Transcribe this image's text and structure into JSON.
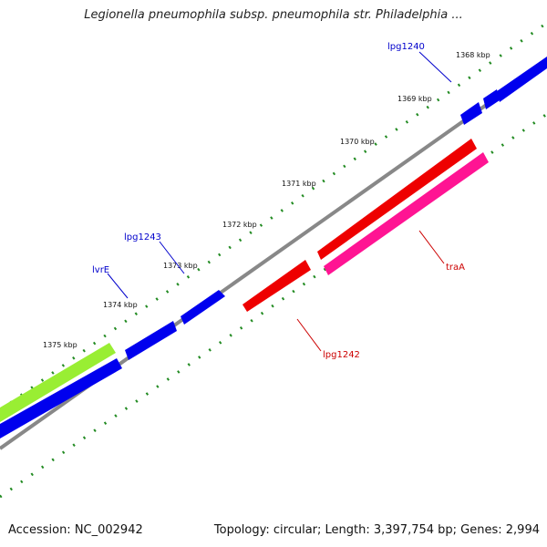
{
  "title": "Legionella pneumophila subsp. pneumophila str. Philadelphia ...",
  "footer": {
    "accession": "Accession: NC_002942",
    "summary": "Topology: circular; Length: 3,397,754 bp; Genes: 2,994"
  },
  "ticks": [
    {
      "label": "1368 kbp",
      "kbp": 1368
    },
    {
      "label": "1369 kbp",
      "kbp": 1369
    },
    {
      "label": "1370 kbp",
      "kbp": 1370
    },
    {
      "label": "1371 kbp",
      "kbp": 1371
    },
    {
      "label": "1372 kbp",
      "kbp": 1372
    },
    {
      "label": "1373 kbp",
      "kbp": 1373
    },
    {
      "label": "1374 kbp",
      "kbp": 1374
    },
    {
      "label": "1375 kbp",
      "kbp": 1375
    }
  ],
  "gene_labels": [
    {
      "name": "lpg1240",
      "color": "#0000cc"
    },
    {
      "name": "lpg1243",
      "color": "#0000cc"
    },
    {
      "name": "lvrE",
      "color": "#0000cc"
    },
    {
      "name": "traA",
      "color": "#cc0000"
    },
    {
      "name": "lpg1242",
      "color": "#cc0000"
    }
  ],
  "colors": {
    "forward_gene": "#0000ee",
    "reverse_gene": "#ee0000",
    "pink_feature": "#ff1493",
    "green_feature": "#99ee33",
    "backbone": "#888888",
    "tick_marks": "#228b22"
  }
}
